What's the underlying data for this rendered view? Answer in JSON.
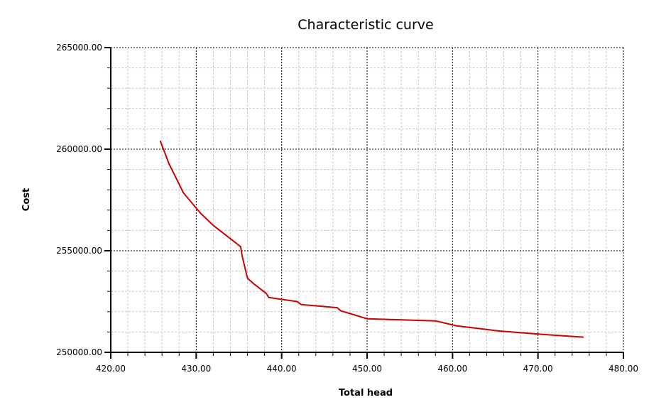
{
  "chart_data": {
    "type": "line",
    "title": "Characteristic curve",
    "xlabel": "Total head",
    "ylabel": "Cost",
    "xlim": [
      420,
      480
    ],
    "ylim": [
      250000,
      265000
    ],
    "x_ticks": [
      420,
      430,
      440,
      450,
      460,
      470,
      480
    ],
    "y_ticks": [
      250000,
      255000,
      260000,
      265000
    ],
    "x_tick_labels": [
      "420.00",
      "430.00",
      "440.00",
      "450.00",
      "460.00",
      "470.00",
      "480.00"
    ],
    "y_tick_labels": [
      "250000.00",
      "255000.00",
      "260000.00",
      "265000.00"
    ],
    "x_minor_step": 2,
    "y_minor_step": 1000,
    "grid": true,
    "series": [
      {
        "color": "#cc0000",
        "x": [
          425.8,
          426.8,
          428.5,
          430.5,
          432.0,
          435.2,
          435.4,
          436.0,
          436.8,
          438.2,
          438.5,
          441.8,
          442.3,
          446.5,
          446.9,
          450.0,
          458.0,
          460.5,
          465.5,
          470.0,
          475.3
        ],
        "y": [
          260400,
          259300,
          257850,
          256850,
          256250,
          255200,
          254700,
          253650,
          253350,
          252900,
          252700,
          252500,
          252350,
          252200,
          252050,
          251650,
          251550,
          251300,
          251050,
          250900,
          250750
        ]
      }
    ]
  }
}
